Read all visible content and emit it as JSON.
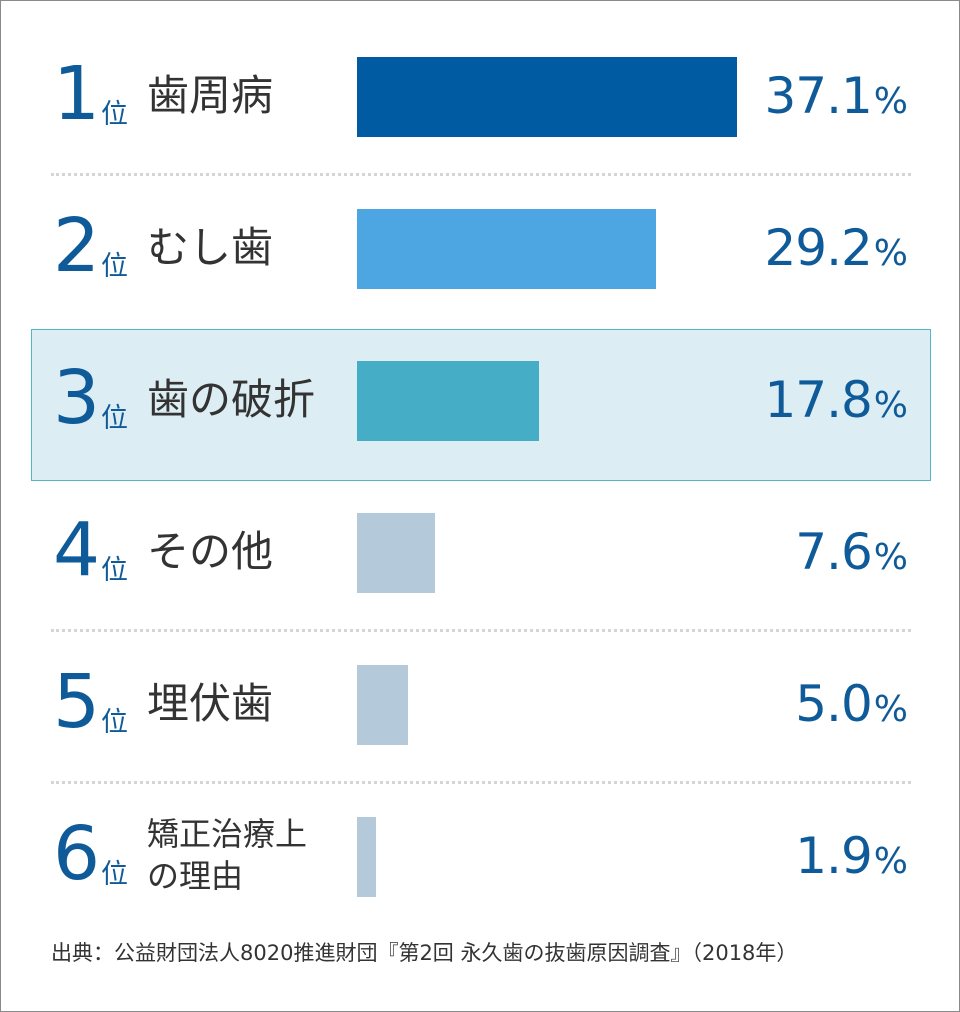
{
  "chart_data": {
    "type": "bar",
    "orientation": "horizontal",
    "rank_suffix": "位",
    "unit": "%",
    "items": [
      {
        "rank": "1",
        "label": "歯周病",
        "value": 37.1,
        "value_text": "37.1",
        "color": "#005ba2"
      },
      {
        "rank": "2",
        "label": "むし歯",
        "value": 29.2,
        "value_text": "29.2",
        "color": "#4da6e2"
      },
      {
        "rank": "3",
        "label": "歯の破折",
        "value": 17.8,
        "value_text": "17.8",
        "color": "#45aec6",
        "highlighted": true
      },
      {
        "rank": "4",
        "label": "その他",
        "value": 7.6,
        "value_text": "7.6",
        "color": "#b4cadb"
      },
      {
        "rank": "5",
        "label": "埋伏歯",
        "value": 5.0,
        "value_text": "5.0",
        "color": "#b4cadb"
      },
      {
        "rank": "6",
        "label": "矯正治療上の理由",
        "label_lines": [
          "矯正治療上",
          "の理由"
        ],
        "value": 1.9,
        "value_text": "1.9",
        "color": "#b4cadb"
      }
    ],
    "source": "出典：公益財団法人8020推進財団『第2回 永久歯の抜歯原因調査』（2018年）"
  }
}
